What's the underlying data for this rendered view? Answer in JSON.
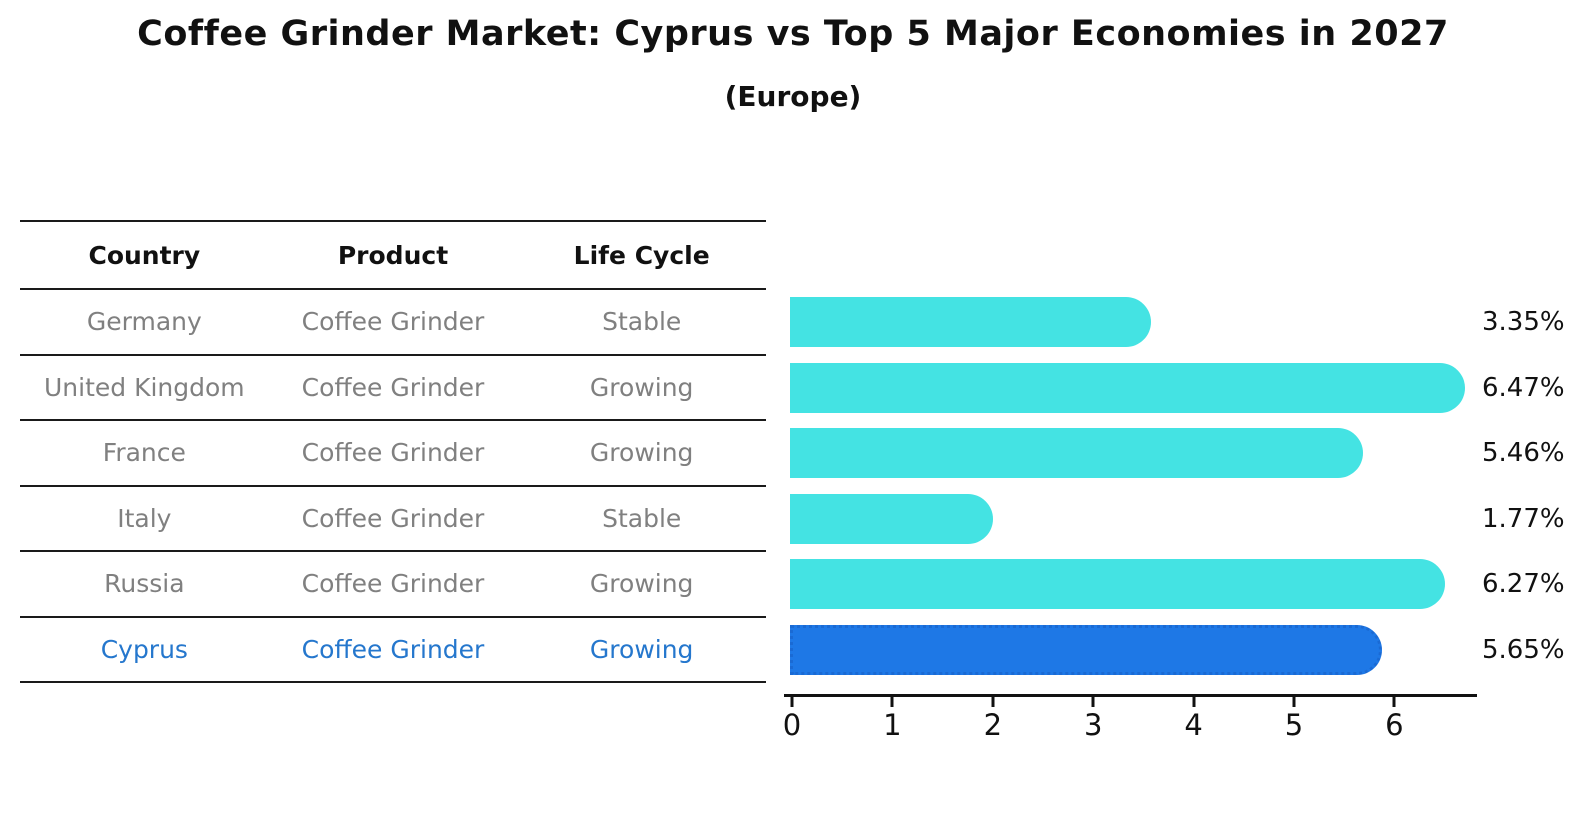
{
  "title": "Coffee Grinder Market: Cyprus vs Top 5 Major Economies in 2027",
  "subtitle": "(Europe)",
  "table": {
    "headers": [
      "Country",
      "Product",
      "Life Cycle"
    ],
    "rows": [
      {
        "country": "Germany",
        "product": "Coffee Grinder",
        "life_cycle": "Stable",
        "highlight": false
      },
      {
        "country": "United Kingdom",
        "product": "Coffee Grinder",
        "life_cycle": "Growing",
        "highlight": false
      },
      {
        "country": "France",
        "product": "Coffee Grinder",
        "life_cycle": "Growing",
        "highlight": false
      },
      {
        "country": "Italy",
        "product": "Coffee Grinder",
        "life_cycle": "Stable",
        "highlight": false
      },
      {
        "country": "Russia",
        "product": "Coffee Grinder",
        "life_cycle": "Growing",
        "highlight": false
      },
      {
        "country": "Cyprus",
        "product": "Coffee Grinder",
        "life_cycle": "Growing",
        "highlight": true
      }
    ]
  },
  "chart_data": {
    "type": "bar",
    "orientation": "horizontal",
    "categories": [
      "Germany",
      "United Kingdom",
      "France",
      "Italy",
      "Russia",
      "Cyprus"
    ],
    "values": [
      3.35,
      6.47,
      5.46,
      1.77,
      6.27,
      5.65
    ],
    "labels": [
      "3.35%",
      "6.47%",
      "5.46%",
      "1.77%",
      "6.27%",
      "5.65%"
    ],
    "highlight_index": 5,
    "x_ticks": [
      0,
      1,
      2,
      3,
      4,
      5,
      6
    ],
    "xlim": [
      0,
      6.8
    ],
    "grid": false,
    "legend": "none",
    "colors": {
      "bar": "#44E3E3",
      "highlight_bar": "#1E78E6",
      "highlight_border": "#1A6AD4",
      "highlight_text": "#2577CD",
      "row_text": "#808080",
      "line": "#1A1A1A",
      "text": "#111111"
    }
  }
}
